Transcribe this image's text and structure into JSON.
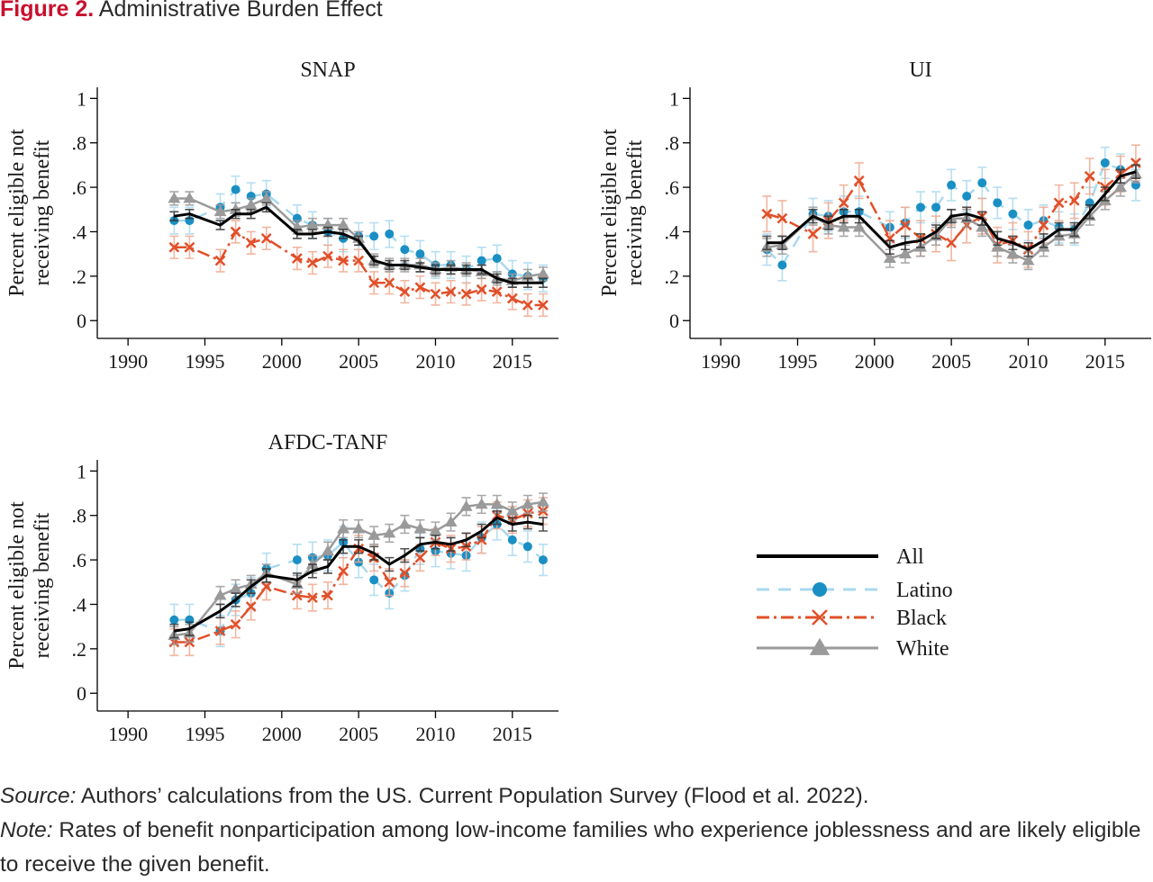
{
  "figure": {
    "label": "Figure 2.",
    "title": "Administrative Burden Effect"
  },
  "source": {
    "label": "Source:",
    "text": " Authors’ calculations from the US. Current Population Survey (Flood et al. 2022)."
  },
  "note": {
    "label": "Note:",
    "text": " Rates of benefit nonparticipation among low-income families who experience joblessness and are likely eligible to receive the given benefit."
  },
  "legend": {
    "items": [
      {
        "key": "all",
        "label": "All"
      },
      {
        "key": "latino",
        "label": "Latino"
      },
      {
        "key": "black",
        "label": "Black"
      },
      {
        "key": "white",
        "label": "White"
      }
    ]
  },
  "colors": {
    "all": "#000000",
    "latino": "#1a8fc4",
    "latino_line": "#a9d9ee",
    "black": "#e0502a",
    "white": "#9a9a9a"
  },
  "chart_data": [
    {
      "type": "line",
      "title": "SNAP",
      "ylabel": "Percent eligible not receiving benefit",
      "xlim": [
        1988,
        2018
      ],
      "ylim": [
        -0.08,
        1.05
      ],
      "xticks": [
        1990,
        1995,
        2000,
        2005,
        2010,
        2015
      ],
      "yticks": [
        0,
        0.2,
        0.4,
        0.6,
        0.8,
        1
      ],
      "yticklabels": [
        "0",
        ".2",
        ".4",
        ".6",
        ".8",
        "1"
      ],
      "x": [
        1993,
        1994,
        1996,
        1997,
        1998,
        1999,
        2001,
        2002,
        2003,
        2004,
        2005,
        2006,
        2007,
        2008,
        2009,
        2010,
        2011,
        2012,
        2013,
        2014,
        2015,
        2016,
        2017
      ],
      "series": [
        {
          "name": "All",
          "key": "all",
          "values": [
            0.47,
            0.48,
            0.43,
            0.48,
            0.48,
            0.51,
            0.39,
            0.39,
            0.4,
            0.39,
            0.36,
            0.27,
            0.25,
            0.25,
            0.24,
            0.23,
            0.23,
            0.23,
            0.23,
            0.19,
            0.17,
            0.17,
            0.17
          ],
          "err": 0.02
        },
        {
          "name": "Latino",
          "key": "latino",
          "values": [
            0.45,
            0.45,
            0.51,
            0.59,
            0.56,
            0.57,
            0.46,
            0.43,
            0.4,
            0.37,
            0.38,
            0.38,
            0.39,
            0.32,
            0.3,
            0.25,
            0.25,
            0.23,
            0.27,
            0.28,
            0.21,
            0.2,
            0.19
          ],
          "err": 0.06
        },
        {
          "name": "Black",
          "key": "black",
          "values": [
            0.33,
            0.33,
            0.27,
            0.4,
            0.35,
            0.37,
            0.28,
            0.26,
            0.29,
            0.27,
            0.27,
            0.17,
            0.17,
            0.13,
            0.15,
            0.12,
            0.13,
            0.12,
            0.14,
            0.13,
            0.1,
            0.07,
            0.07
          ],
          "err": 0.05
        },
        {
          "name": "White",
          "key": "white",
          "values": [
            0.55,
            0.55,
            0.49,
            0.5,
            0.52,
            0.55,
            0.42,
            0.43,
            0.43,
            0.43,
            0.37,
            0.27,
            0.25,
            0.25,
            0.25,
            0.23,
            0.24,
            0.23,
            0.22,
            0.19,
            0.18,
            0.2,
            0.21
          ],
          "err": 0.03
        }
      ]
    },
    {
      "type": "line",
      "title": "UI",
      "ylabel": "Percent eligible not receiving benefit",
      "xlim": [
        1988,
        2018
      ],
      "ylim": [
        -0.08,
        1.05
      ],
      "xticks": [
        1990,
        1995,
        2000,
        2005,
        2010,
        2015
      ],
      "yticks": [
        0,
        0.2,
        0.4,
        0.6,
        0.8,
        1
      ],
      "yticklabels": [
        "0",
        ".2",
        ".4",
        ".6",
        ".8",
        "1"
      ],
      "x": [
        1993,
        1994,
        1996,
        1997,
        1998,
        1999,
        2001,
        2002,
        2003,
        2004,
        2005,
        2006,
        2007,
        2008,
        2009,
        2010,
        2011,
        2012,
        2013,
        2014,
        2015,
        2016,
        2017
      ],
      "series": [
        {
          "name": "All",
          "key": "all",
          "values": [
            0.35,
            0.35,
            0.47,
            0.44,
            0.47,
            0.47,
            0.33,
            0.35,
            0.36,
            0.4,
            0.47,
            0.48,
            0.46,
            0.37,
            0.35,
            0.32,
            0.36,
            0.41,
            0.41,
            0.49,
            0.57,
            0.65,
            0.67
          ],
          "err": 0.03
        },
        {
          "name": "Latino",
          "key": "latino",
          "values": [
            0.32,
            0.25,
            0.48,
            0.47,
            0.49,
            0.49,
            0.42,
            0.44,
            0.51,
            0.51,
            0.61,
            0.56,
            0.62,
            0.53,
            0.48,
            0.43,
            0.45,
            0.42,
            0.41,
            0.53,
            0.71,
            0.68,
            0.61
          ],
          "err": 0.07
        },
        {
          "name": "Black",
          "key": "black",
          "values": [
            0.48,
            0.46,
            0.39,
            0.45,
            0.53,
            0.63,
            0.37,
            0.43,
            0.37,
            0.39,
            0.35,
            0.43,
            0.47,
            0.34,
            0.36,
            0.32,
            0.43,
            0.53,
            0.54,
            0.65,
            0.6,
            0.66,
            0.71
          ],
          "err": 0.08
        },
        {
          "name": "White",
          "key": "white",
          "values": [
            0.33,
            0.34,
            0.47,
            0.43,
            0.42,
            0.42,
            0.28,
            0.3,
            0.33,
            0.38,
            0.46,
            0.46,
            0.42,
            0.33,
            0.3,
            0.27,
            0.33,
            0.38,
            0.39,
            0.47,
            0.54,
            0.6,
            0.66
          ],
          "err": 0.04
        }
      ]
    },
    {
      "type": "line",
      "title": "AFDC-TANF",
      "ylabel": "Percent eligible not receiving benefit",
      "xlim": [
        1988,
        2018
      ],
      "ylim": [
        -0.08,
        1.05
      ],
      "xticks": [
        1990,
        1995,
        2000,
        2005,
        2010,
        2015
      ],
      "yticks": [
        0,
        0.2,
        0.4,
        0.6,
        0.8,
        1
      ],
      "yticklabels": [
        "0",
        ".2",
        ".4",
        ".6",
        ".8",
        "1"
      ],
      "x": [
        1993,
        1994,
        1996,
        1997,
        1998,
        1999,
        2001,
        2002,
        2003,
        2004,
        2005,
        2006,
        2007,
        2008,
        2009,
        2010,
        2011,
        2012,
        2013,
        2014,
        2015,
        2016,
        2017
      ],
      "series": [
        {
          "name": "All",
          "key": "all",
          "values": [
            0.28,
            0.29,
            0.37,
            0.42,
            0.48,
            0.53,
            0.51,
            0.55,
            0.57,
            0.66,
            0.66,
            0.63,
            0.58,
            0.62,
            0.67,
            0.68,
            0.67,
            0.69,
            0.73,
            0.79,
            0.76,
            0.77,
            0.76
          ],
          "err": 0.03
        },
        {
          "name": "Latino",
          "key": "latino",
          "values": [
            0.33,
            0.33,
            0.28,
            0.42,
            0.45,
            0.56,
            0.6,
            0.61,
            0.62,
            0.68,
            0.59,
            0.51,
            0.45,
            0.53,
            0.65,
            0.64,
            0.63,
            0.62,
            0.7,
            0.76,
            0.69,
            0.66,
            0.6
          ],
          "err": 0.07
        },
        {
          "name": "Black",
          "key": "black",
          "values": [
            0.23,
            0.23,
            0.28,
            0.31,
            0.39,
            0.48,
            0.44,
            0.43,
            0.44,
            0.55,
            0.65,
            0.61,
            0.5,
            0.54,
            0.61,
            0.68,
            0.65,
            0.66,
            0.69,
            0.8,
            0.78,
            0.81,
            0.82
          ],
          "err": 0.06
        },
        {
          "name": "White",
          "key": "white",
          "values": [
            0.26,
            0.27,
            0.44,
            0.47,
            0.49,
            0.54,
            0.49,
            0.58,
            0.64,
            0.74,
            0.74,
            0.71,
            0.72,
            0.76,
            0.74,
            0.73,
            0.77,
            0.84,
            0.85,
            0.85,
            0.82,
            0.85,
            0.86
          ],
          "err": 0.04
        }
      ]
    }
  ]
}
